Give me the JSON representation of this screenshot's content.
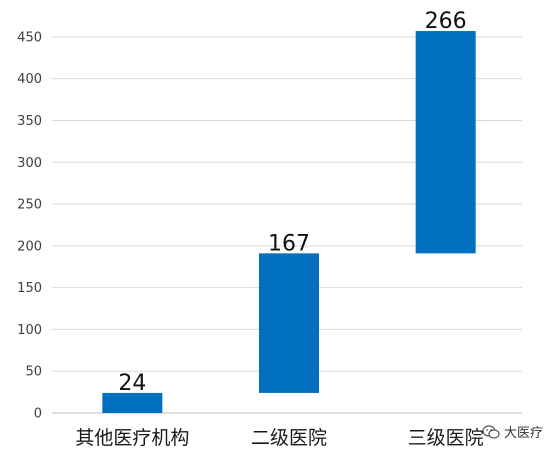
{
  "chart_data": {
    "type": "bar",
    "subtype": "waterfall",
    "categories": [
      "其他医疗机构",
      "二级医院",
      "三级医院"
    ],
    "values": [
      24,
      167,
      266
    ],
    "bases": [
      0,
      24,
      191
    ],
    "data_labels": [
      "24",
      "167",
      "266"
    ],
    "ylim": [
      0,
      475
    ],
    "yticks": [
      0,
      50,
      100,
      150,
      200,
      250,
      300,
      350,
      400,
      450
    ],
    "grid": true,
    "legend": "none",
    "title": "",
    "xlabel": "",
    "ylabel": "",
    "bar_color": "#0070c0"
  },
  "watermark": {
    "text": "大医疗",
    "icon": "wechat-icon"
  }
}
